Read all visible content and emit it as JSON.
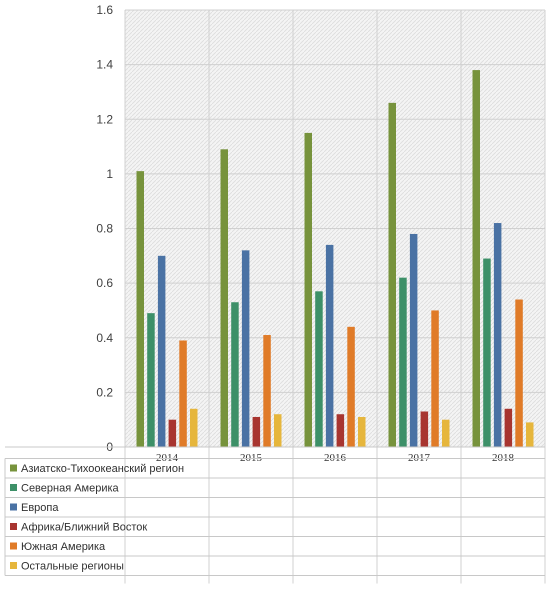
{
  "chart_data": {
    "type": "bar",
    "categories": [
      "2014",
      "2015",
      "2016",
      "2017",
      "2018"
    ],
    "ylim": [
      0,
      1.6
    ],
    "yticks": [
      "0",
      "0.2",
      "0.4",
      "0.6",
      "0.8",
      "1",
      "1.2",
      "1.4",
      "1.6"
    ],
    "ytick_values": [
      0,
      0.2,
      0.4,
      0.6,
      0.8,
      1.0,
      1.2,
      1.4,
      1.6
    ],
    "grid": true,
    "legend_position": "bottom (data table)",
    "series": [
      {
        "name": "Азиатско-Тихоокеанский регион",
        "color": "#77933c",
        "values": [
          1.01,
          1.09,
          1.15,
          1.26,
          1.38
        ]
      },
      {
        "name": "Северная Америка",
        "color": "#3d9068",
        "values": [
          0.49,
          0.53,
          0.57,
          0.62,
          0.69
        ]
      },
      {
        "name": "Европа",
        "color": "#4a72a4",
        "values": [
          0.7,
          0.72,
          0.74,
          0.78,
          0.82
        ]
      },
      {
        "name": "Африка/Ближний Восток",
        "color": "#a83530",
        "values": [
          0.1,
          0.11,
          0.12,
          0.13,
          0.14
        ]
      },
      {
        "name": "Южная Америка",
        "color": "#e07b28",
        "values": [
          0.39,
          0.41,
          0.44,
          0.5,
          0.54
        ]
      },
      {
        "name": "Остальные регионы",
        "color": "#e6b63c",
        "values": [
          0.14,
          0.12,
          0.11,
          0.1,
          0.09
        ]
      }
    ]
  }
}
